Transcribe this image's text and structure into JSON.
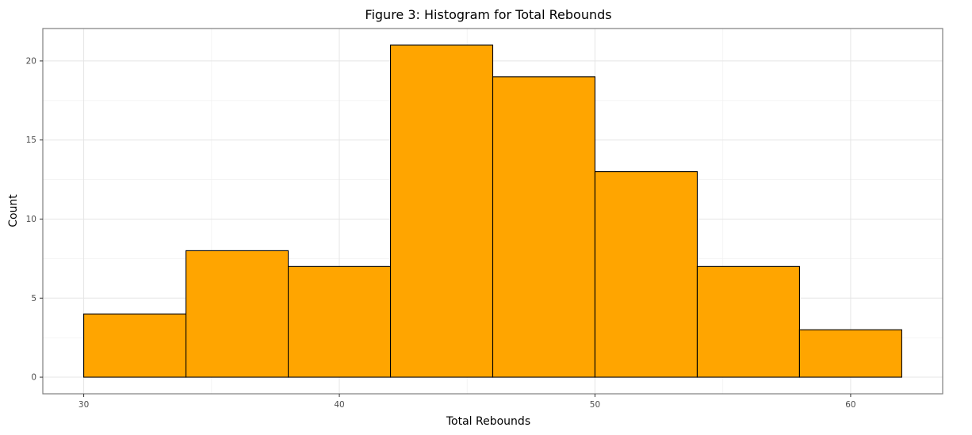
{
  "chart_data": {
    "type": "bar",
    "title": "Figure 3: Histogram for Total Rebounds",
    "xlabel": "Total Rebounds",
    "ylabel": "Count",
    "bins": [
      {
        "start": 30,
        "end": 34,
        "count": 4
      },
      {
        "start": 34,
        "end": 38,
        "count": 8
      },
      {
        "start": 38,
        "end": 42,
        "count": 7
      },
      {
        "start": 42,
        "end": 46,
        "count": 21
      },
      {
        "start": 46,
        "end": 50,
        "count": 19
      },
      {
        "start": 50,
        "end": 54,
        "count": 13
      },
      {
        "start": 54,
        "end": 58,
        "count": 7
      },
      {
        "start": 58,
        "end": 62,
        "count": 3
      }
    ],
    "xlim": [
      28.4,
      63.6
    ],
    "ylim": [
      -1.05,
      22.05
    ],
    "xticks": [
      30,
      40,
      50,
      60
    ],
    "yticks": [
      0,
      5,
      10,
      15,
      20
    ],
    "grid": true,
    "bar_color": "#FFA500",
    "bar_edge_color": "#000000"
  }
}
